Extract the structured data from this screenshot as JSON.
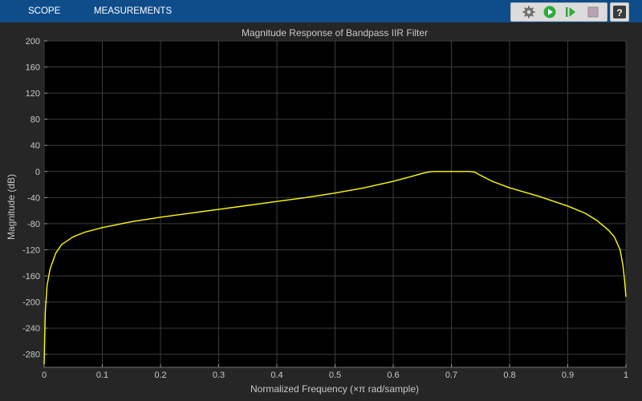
{
  "toolbar": {
    "tabs": [
      "SCOPE",
      "MEASUREMENTS"
    ],
    "icons": [
      "settings-icon",
      "run-icon",
      "step-forward-icon",
      "stop-icon"
    ],
    "help_label": "?"
  },
  "colors": {
    "toolbar_bg": "#0f4d8a",
    "figure_bg": "#262626",
    "axes_bg": "#000000",
    "grid": "#3c3c3c",
    "trace": "#ffff00",
    "run_green": "#2eaa3a",
    "text": "#c8c8c8"
  },
  "chart_data": {
    "type": "line",
    "title": "Magnitude Response of Bandpass IIR Filter",
    "xlabel": "Normalized Frequency (×π rad/sample)",
    "ylabel": "Magnitude (dB)",
    "xlim": [
      0,
      1
    ],
    "ylim": [
      -300,
      200
    ],
    "xticks": [
      0,
      0.1,
      0.2,
      0.3,
      0.4,
      0.5,
      0.6,
      0.7,
      0.8,
      0.9,
      1
    ],
    "xtick_labels": [
      "0",
      "0.1",
      "0.2",
      "0.3",
      "0.4",
      "0.5",
      "0.6",
      "0.7",
      "0.8",
      "0.9",
      "1"
    ],
    "yticks": [
      200,
      160,
      120,
      80,
      40,
      0,
      -40,
      -80,
      -120,
      -160,
      -200,
      -240,
      -280
    ],
    "ytick_labels": [
      "200",
      "160",
      "120",
      "80",
      "40",
      "0",
      "-40",
      "-80",
      "-120",
      "-160",
      "-200",
      "-240",
      "-280"
    ],
    "grid": true,
    "series": [
      {
        "color": "#ffff00",
        "x": [
          0,
          0.002,
          0.005,
          0.01,
          0.02,
          0.03,
          0.05,
          0.07,
          0.1,
          0.15,
          0.2,
          0.25,
          0.3,
          0.35,
          0.4,
          0.45,
          0.5,
          0.55,
          0.6,
          0.63,
          0.65,
          0.66,
          0.67,
          0.7,
          0.73,
          0.74,
          0.75,
          0.77,
          0.8,
          0.85,
          0.9,
          0.93,
          0.95,
          0.97,
          0.98,
          0.99,
          0.995,
          0.998,
          1
        ],
        "y": [
          -295,
          -215,
          -175,
          -150,
          -125,
          -112,
          -100,
          -93,
          -86,
          -77,
          -70,
          -64,
          -58,
          -52,
          -46,
          -40,
          -33,
          -25,
          -15,
          -8,
          -3,
          -1,
          0,
          0,
          0,
          -1,
          -6,
          -15,
          -25,
          -38,
          -53,
          -64,
          -75,
          -90,
          -100,
          -120,
          -145,
          -170,
          -192
        ]
      }
    ]
  }
}
